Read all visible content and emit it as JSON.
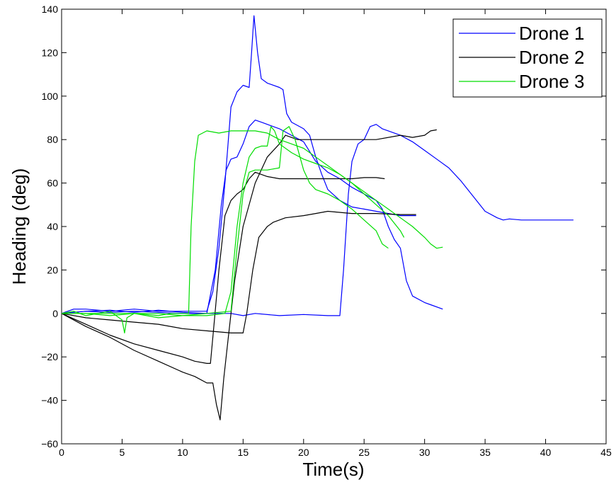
{
  "chart_data": {
    "type": "line",
    "title": "",
    "xlabel": "Time(s)",
    "ylabel": "Heading (deg)",
    "xlim": [
      0,
      45
    ],
    "ylim": [
      -60,
      140
    ],
    "xticks": [
      0,
      5,
      10,
      15,
      20,
      25,
      30,
      35,
      40,
      45
    ],
    "yticks": [
      -60,
      -40,
      -20,
      0,
      20,
      40,
      60,
      80,
      100,
      120,
      140
    ],
    "grid": false,
    "legend_position": "top-right",
    "legend": [
      {
        "name": "Drone 1",
        "color": "#0000ff"
      },
      {
        "name": "Drone 2",
        "color": "#000000"
      },
      {
        "name": "Drone 3",
        "color": "#00dd00"
      }
    ],
    "series": [
      {
        "name": "Drone 1",
        "color": "#0000ff",
        "points": [
          [
            0,
            0
          ],
          [
            1,
            2
          ],
          [
            2,
            2
          ],
          [
            4,
            1
          ],
          [
            6,
            2
          ],
          [
            8,
            1
          ],
          [
            10,
            1
          ],
          [
            12,
            1
          ],
          [
            12.5,
            10
          ],
          [
            13,
            30
          ],
          [
            13.5,
            60
          ],
          [
            14,
            95
          ],
          [
            14.5,
            102
          ],
          [
            15,
            105
          ],
          [
            15.5,
            104
          ],
          [
            15.7,
            120
          ],
          [
            15.9,
            137
          ],
          [
            16.2,
            120
          ],
          [
            16.5,
            108
          ],
          [
            17,
            106
          ],
          [
            18,
            104
          ],
          [
            18.3,
            103
          ],
          [
            18.6,
            92
          ],
          [
            19,
            88
          ],
          [
            20,
            85
          ],
          [
            20.5,
            82
          ],
          [
            21,
            72
          ],
          [
            21.5,
            64
          ],
          [
            22,
            57
          ],
          [
            23,
            52
          ],
          [
            24,
            49
          ],
          [
            25,
            48
          ],
          [
            26,
            47
          ],
          [
            27,
            46
          ],
          [
            28,
            45
          ],
          [
            29.3,
            45
          ]
        ]
      },
      {
        "name": "Drone 1",
        "color": "#0000ff",
        "points": [
          [
            0,
            0
          ],
          [
            2,
            1
          ],
          [
            4,
            0.5
          ],
          [
            6,
            1
          ],
          [
            8,
            0.5
          ],
          [
            10,
            0
          ],
          [
            12,
            0
          ],
          [
            12.7,
            20
          ],
          [
            13.2,
            50
          ],
          [
            13.6,
            66
          ],
          [
            14,
            71
          ],
          [
            14.5,
            72
          ],
          [
            15,
            78
          ],
          [
            15.5,
            86
          ],
          [
            16,
            89
          ],
          [
            16.5,
            88
          ],
          [
            17,
            87
          ],
          [
            18,
            85
          ],
          [
            19,
            82
          ],
          [
            20,
            79
          ],
          [
            21,
            70
          ],
          [
            22,
            65
          ],
          [
            23,
            62
          ],
          [
            24,
            58
          ],
          [
            25,
            55
          ],
          [
            26,
            52
          ],
          [
            26.5,
            48
          ],
          [
            27,
            40
          ],
          [
            27.5,
            34
          ],
          [
            28,
            30
          ],
          [
            28.5,
            15
          ],
          [
            29,
            8
          ],
          [
            30,
            5
          ],
          [
            30.5,
            4
          ],
          [
            31.5,
            2
          ]
        ]
      },
      {
        "name": "Drone 1",
        "color": "#0000ff",
        "points": [
          [
            0,
            0
          ],
          [
            2,
            1
          ],
          [
            4,
            1.5
          ],
          [
            6,
            0.5
          ],
          [
            8,
            1.5
          ],
          [
            10,
            0.5
          ],
          [
            12,
            0
          ],
          [
            13,
            0
          ],
          [
            14,
            0
          ],
          [
            15,
            -1
          ],
          [
            16,
            0
          ],
          [
            18,
            -1
          ],
          [
            20,
            -0.5
          ],
          [
            22,
            -1
          ],
          [
            23,
            -1
          ],
          [
            23.3,
            20
          ],
          [
            23.7,
            55
          ],
          [
            24,
            70
          ],
          [
            24.5,
            78
          ],
          [
            25,
            80
          ],
          [
            25.5,
            86
          ],
          [
            26,
            87
          ],
          [
            26.5,
            85
          ],
          [
            27,
            84
          ],
          [
            28,
            82
          ],
          [
            29,
            79
          ],
          [
            30,
            75
          ],
          [
            31,
            71
          ],
          [
            32,
            67
          ],
          [
            33,
            61
          ],
          [
            34,
            54
          ],
          [
            35,
            47
          ],
          [
            36,
            44
          ],
          [
            36.5,
            43
          ],
          [
            37,
            43.5
          ],
          [
            38,
            43
          ],
          [
            40,
            43
          ],
          [
            42,
            43
          ],
          [
            42.3,
            43
          ]
        ]
      },
      {
        "name": "Drone 2",
        "color": "#000000",
        "points": [
          [
            0,
            0
          ],
          [
            2,
            -2
          ],
          [
            4,
            -3
          ],
          [
            6,
            -4
          ],
          [
            8,
            -5
          ],
          [
            10,
            -7
          ],
          [
            12,
            -8
          ],
          [
            13,
            -8.5
          ],
          [
            14,
            -9
          ],
          [
            15,
            -9
          ],
          [
            15.3,
            0
          ],
          [
            15.8,
            20
          ],
          [
            16.3,
            35
          ],
          [
            17,
            40
          ],
          [
            17.5,
            42
          ],
          [
            18.5,
            44
          ],
          [
            20,
            45
          ],
          [
            21,
            46
          ],
          [
            22,
            47
          ],
          [
            24,
            46
          ],
          [
            26,
            46
          ],
          [
            28,
            45.5
          ],
          [
            29.3,
            45.5
          ]
        ]
      },
      {
        "name": "Drone 2",
        "color": "#000000",
        "points": [
          [
            0,
            0
          ],
          [
            2,
            -5
          ],
          [
            4,
            -10
          ],
          [
            6,
            -14
          ],
          [
            8,
            -17
          ],
          [
            10,
            -20
          ],
          [
            11,
            -22
          ],
          [
            12,
            -23
          ],
          [
            12.3,
            -23
          ],
          [
            12.6,
            -5
          ],
          [
            13,
            20
          ],
          [
            13.5,
            45
          ],
          [
            14,
            52
          ],
          [
            14.5,
            55
          ],
          [
            15,
            57
          ],
          [
            15.5,
            62
          ],
          [
            16,
            65
          ],
          [
            17,
            63
          ],
          [
            18,
            62
          ],
          [
            20,
            62
          ],
          [
            22,
            62
          ],
          [
            24,
            62
          ],
          [
            25,
            62.5
          ],
          [
            26,
            62.5
          ],
          [
            26.7,
            62
          ]
        ]
      },
      {
        "name": "Drone 2",
        "color": "#000000",
        "points": [
          [
            0,
            0
          ],
          [
            2,
            -6
          ],
          [
            4,
            -11
          ],
          [
            6,
            -17
          ],
          [
            8,
            -22
          ],
          [
            10,
            -27
          ],
          [
            11,
            -29
          ],
          [
            12,
            -32
          ],
          [
            12.5,
            -32
          ],
          [
            12.8,
            -42
          ],
          [
            13.1,
            -49
          ],
          [
            13.4,
            -30
          ],
          [
            13.8,
            -10
          ],
          [
            14.3,
            15
          ],
          [
            15,
            40
          ],
          [
            16,
            60
          ],
          [
            17,
            72
          ],
          [
            18,
            78
          ],
          [
            18.5,
            82
          ],
          [
            19.5,
            80
          ],
          [
            20.5,
            80
          ],
          [
            22,
            80
          ],
          [
            24,
            80
          ],
          [
            26,
            80
          ],
          [
            28,
            82
          ],
          [
            29,
            81
          ],
          [
            30,
            82
          ],
          [
            30.5,
            84
          ],
          [
            31,
            84.5
          ]
        ]
      },
      {
        "name": "Drone 3",
        "color": "#00dd00",
        "points": [
          [
            0,
            0
          ],
          [
            1,
            1
          ],
          [
            2,
            -1
          ],
          [
            3,
            0
          ],
          [
            4,
            1
          ],
          [
            5,
            -3
          ],
          [
            5.2,
            -9
          ],
          [
            5.4,
            -2
          ],
          [
            6,
            0
          ],
          [
            8,
            -1
          ],
          [
            9,
            0
          ],
          [
            10,
            0
          ],
          [
            10.5,
            0
          ],
          [
            10.7,
            40
          ],
          [
            11,
            70
          ],
          [
            11.3,
            82
          ],
          [
            12,
            84
          ],
          [
            13,
            83
          ],
          [
            14,
            84
          ],
          [
            15,
            84
          ],
          [
            16,
            84
          ],
          [
            17,
            83
          ],
          [
            18,
            80
          ],
          [
            19,
            78
          ],
          [
            20,
            76
          ],
          [
            21,
            72
          ],
          [
            22,
            68
          ],
          [
            23,
            64
          ],
          [
            24,
            60
          ],
          [
            25,
            56
          ],
          [
            26,
            52
          ],
          [
            27,
            48
          ],
          [
            28,
            44
          ],
          [
            29,
            40
          ],
          [
            30,
            35
          ],
          [
            30.5,
            32
          ],
          [
            31,
            30
          ],
          [
            31.5,
            30.5
          ]
        ]
      },
      {
        "name": "Drone 3",
        "color": "#00dd00",
        "points": [
          [
            0,
            0
          ],
          [
            2,
            0
          ],
          [
            4,
            -1
          ],
          [
            6,
            0
          ],
          [
            8,
            -2
          ],
          [
            10,
            -1
          ],
          [
            12,
            -1
          ],
          [
            13.5,
            0
          ],
          [
            14,
            10
          ],
          [
            14.5,
            40
          ],
          [
            15,
            60
          ],
          [
            15.5,
            72
          ],
          [
            16,
            76
          ],
          [
            16.5,
            77
          ],
          [
            17,
            77
          ],
          [
            17.3,
            86
          ],
          [
            17.6,
            84
          ],
          [
            18,
            78
          ],
          [
            19,
            74
          ],
          [
            20,
            71
          ],
          [
            21,
            69
          ],
          [
            22,
            67
          ],
          [
            23,
            64
          ],
          [
            24,
            60
          ],
          [
            25,
            55
          ],
          [
            26,
            50
          ],
          [
            27,
            45
          ],
          [
            28,
            38
          ],
          [
            28.3,
            35
          ]
        ]
      },
      {
        "name": "Drone 3",
        "color": "#00dd00",
        "points": [
          [
            0,
            0
          ],
          [
            2,
            0
          ],
          [
            4,
            0
          ],
          [
            6,
            0
          ],
          [
            8,
            0
          ],
          [
            10,
            -1
          ],
          [
            12,
            0
          ],
          [
            14,
            1
          ],
          [
            14.5,
            30
          ],
          [
            15,
            55
          ],
          [
            15.5,
            65
          ],
          [
            16,
            66
          ],
          [
            17,
            66
          ],
          [
            18,
            67
          ],
          [
            18.3,
            84
          ],
          [
            18.8,
            86
          ],
          [
            19.3,
            80
          ],
          [
            20,
            66
          ],
          [
            20.5,
            60
          ],
          [
            21,
            57
          ],
          [
            22,
            55
          ],
          [
            23,
            52
          ],
          [
            24,
            48
          ],
          [
            25,
            43
          ],
          [
            26,
            38
          ],
          [
            26.5,
            32
          ],
          [
            27,
            30
          ]
        ]
      }
    ]
  }
}
